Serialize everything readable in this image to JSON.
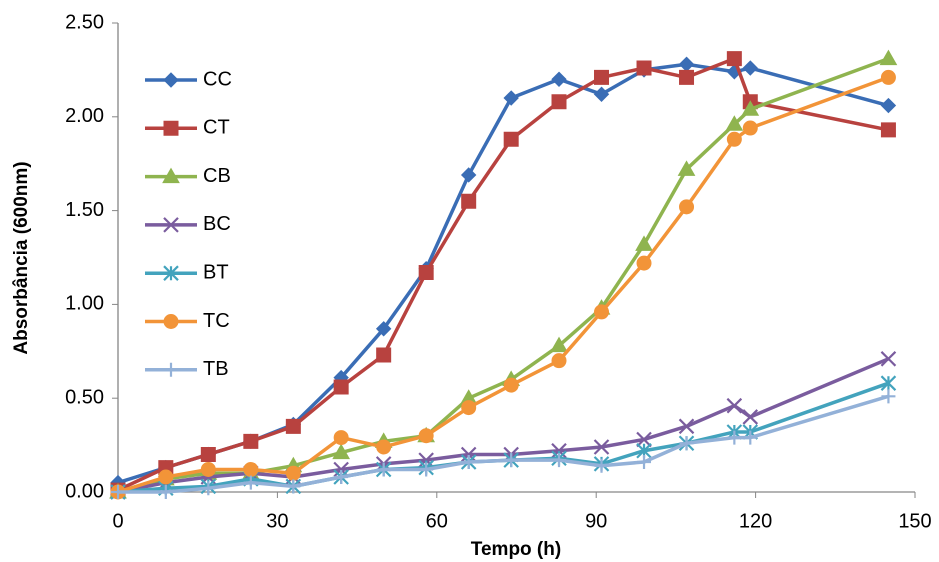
{
  "chart_data": {
    "type": "line",
    "x_label": "Tempo (h)",
    "y_label": "Absorbância (600nm)",
    "x": [
      0,
      9,
      17,
      25,
      33,
      42,
      50,
      58,
      66,
      74,
      83,
      91,
      99,
      107,
      116,
      119,
      145
    ],
    "xlim": [
      0,
      150
    ],
    "xticks": [
      0,
      30,
      60,
      90,
      120,
      150
    ],
    "ylim": [
      0,
      2.5
    ],
    "yticks": [
      {
        "value": 0,
        "label": "0.00"
      },
      {
        "value": 0.5,
        "label": "0.50"
      },
      {
        "value": 1,
        "label": "1.00"
      },
      {
        "value": 1.5,
        "label": "1.50"
      },
      {
        "value": 2,
        "label": "2.00"
      },
      {
        "value": 2.5,
        "label": "2.50"
      }
    ],
    "legend": "left",
    "series": [
      {
        "name": "CC",
        "color": "#3a6db5",
        "marker": "diamond",
        "values": [
          0.05,
          0.13,
          0.2,
          0.27,
          0.36,
          0.61,
          0.87,
          1.19,
          1.69,
          2.1,
          2.2,
          2.12,
          2.25,
          2.28,
          2.24,
          2.26,
          2.06
        ]
      },
      {
        "name": "CT",
        "color": "#b8423f",
        "marker": "square",
        "values": [
          0.01,
          0.13,
          0.2,
          0.27,
          0.35,
          0.56,
          0.73,
          1.17,
          1.55,
          1.88,
          2.08,
          2.21,
          2.26,
          2.21,
          2.31,
          2.08,
          1.93
        ]
      },
      {
        "name": "CB",
        "color": "#8fb44f",
        "marker": "triangle",
        "values": [
          0,
          0.07,
          0.1,
          0.1,
          0.14,
          0.21,
          0.27,
          0.3,
          0.5,
          0.6,
          0.78,
          0.98,
          1.32,
          1.72,
          1.96,
          2.04,
          2.31
        ]
      },
      {
        "name": "BC",
        "color": "#7a5c9e",
        "marker": "x",
        "values": [
          0,
          0.05,
          0.08,
          0.1,
          0.08,
          0.12,
          0.15,
          0.17,
          0.2,
          0.2,
          0.22,
          0.24,
          0.28,
          0.35,
          0.46,
          0.4,
          0.71
        ]
      },
      {
        "name": "BT",
        "color": "#43a3bd",
        "marker": "asterisk",
        "values": [
          0,
          0.02,
          0.03,
          0.07,
          0.03,
          0.08,
          0.12,
          0.13,
          0.16,
          0.17,
          0.18,
          0.15,
          0.22,
          0.26,
          0.32,
          0.32,
          0.58
        ]
      },
      {
        "name": "TC",
        "color": "#f29438",
        "marker": "circle",
        "values": [
          0,
          0.08,
          0.12,
          0.12,
          0.1,
          0.29,
          0.24,
          0.3,
          0.45,
          0.57,
          0.7,
          0.96,
          1.22,
          1.52,
          1.88,
          1.94,
          2.21
        ]
      },
      {
        "name": "TB",
        "color": "#93b1d8",
        "marker": "plus",
        "values": [
          0,
          0,
          0.02,
          0.05,
          0.03,
          0.08,
          0.12,
          0.12,
          0.16,
          0.17,
          0.17,
          0.14,
          0.16,
          0.26,
          0.29,
          0.29,
          0.51
        ]
      }
    ]
  }
}
